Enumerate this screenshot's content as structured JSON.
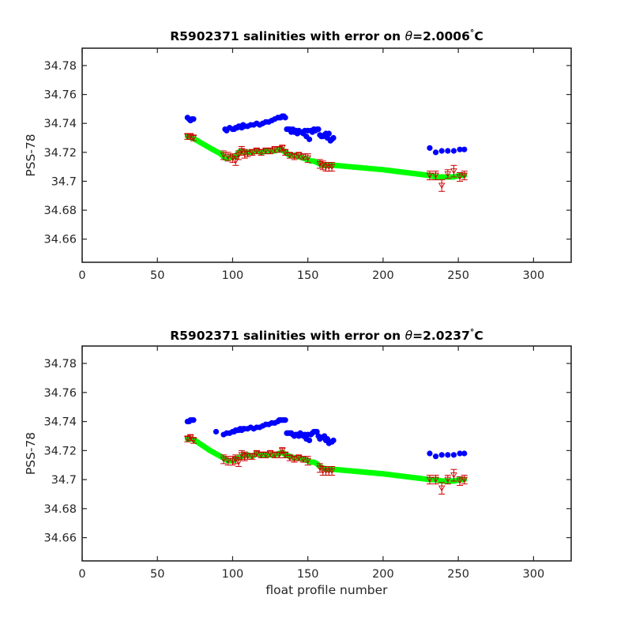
{
  "chart_data": [
    {
      "type": "scatter",
      "title_prefix": "R5902371 salinities with error on ",
      "title_theta": "θ",
      "title_value": "=2.0006",
      "title_degree": "°",
      "title_unit": "C",
      "ylabel": "PSS-78",
      "xlabel": "",
      "xlim": [
        0,
        325
      ],
      "ylim": [
        34.644,
        34.792
      ],
      "xticks": [
        0,
        50,
        100,
        150,
        200,
        250,
        300
      ],
      "xtick_labels": [
        "0",
        "50",
        "100",
        "150",
        "200",
        "250",
        "300"
      ],
      "yticks": [
        34.66,
        34.68,
        34.7,
        34.72,
        34.74,
        34.76,
        34.78
      ],
      "ytick_labels": [
        "34.66",
        "34.68",
        "34.7",
        "34.72",
        "34.74",
        "34.76",
        "34.78"
      ],
      "grid": false,
      "series": [
        {
          "role": "raw",
          "color": "#0000ff",
          "x": [
            70,
            71,
            72,
            73,
            74,
            95,
            96,
            98,
            100,
            101,
            102,
            103,
            104,
            105,
            106,
            107,
            108,
            110,
            112,
            114,
            116,
            118,
            120,
            122,
            124,
            126,
            128,
            130,
            131,
            132,
            133,
            134,
            135,
            136,
            137,
            138,
            139,
            140,
            141,
            142,
            143,
            144,
            145,
            146,
            147,
            148,
            149,
            150,
            151,
            152,
            153,
            154,
            155,
            156,
            157,
            158,
            159,
            160,
            161,
            162,
            163,
            164,
            165,
            166,
            167,
            231,
            235,
            239,
            243,
            247,
            251,
            254
          ],
          "y": [
            34.744,
            34.743,
            34.742,
            34.743,
            34.743,
            34.736,
            34.735,
            34.737,
            34.736,
            34.736,
            34.737,
            34.737,
            34.738,
            34.738,
            34.737,
            34.739,
            34.738,
            34.738,
            34.739,
            34.739,
            34.74,
            34.739,
            34.74,
            34.741,
            34.741,
            34.742,
            34.743,
            34.744,
            34.744,
            34.744,
            34.745,
            34.745,
            34.744,
            34.736,
            34.736,
            34.736,
            34.734,
            34.736,
            34.734,
            34.735,
            34.733,
            34.735,
            34.734,
            34.734,
            34.733,
            34.735,
            34.731,
            34.735,
            34.729,
            34.735,
            34.734,
            34.736,
            34.735,
            34.736,
            34.736,
            34.732,
            34.731,
            34.731,
            34.732,
            34.733,
            34.73,
            34.733,
            34.728,
            34.729,
            34.73,
            34.723,
            34.72,
            34.721,
            34.721,
            34.721,
            34.722,
            34.722
          ]
        },
        {
          "role": "calibrated",
          "color": "#00ff00",
          "x": [
            70,
            73,
            75,
            85,
            92,
            95,
            97,
            100,
            102,
            104,
            106,
            108,
            110,
            113,
            116,
            119,
            122,
            125,
            128,
            131,
            133,
            135,
            138,
            141,
            144,
            147,
            150,
            152,
            154,
            156,
            158,
            160,
            163,
            166,
            168,
            200,
            231,
            235,
            239,
            243,
            247,
            251,
            254
          ],
          "y": [
            34.731,
            34.73,
            34.729,
            34.723,
            34.719,
            34.716,
            34.716,
            34.717,
            34.717,
            34.72,
            34.721,
            34.72,
            34.72,
            34.72,
            34.721,
            34.72,
            34.721,
            34.721,
            34.721,
            34.722,
            34.722,
            34.72,
            34.718,
            34.718,
            34.717,
            34.716,
            34.715,
            34.714,
            34.714,
            34.713,
            34.712,
            34.711,
            34.711,
            34.711,
            34.711,
            34.708,
            34.704,
            34.703,
            34.703,
            34.703,
            34.703,
            34.704,
            34.704
          ]
        },
        {
          "role": "error-bars",
          "color": "#cc0000",
          "x": [
            70,
            72,
            74,
            94,
            97,
            100,
            102,
            104,
            106,
            108,
            110,
            113,
            116,
            119,
            122,
            125,
            128,
            131,
            133,
            135,
            138,
            141,
            144,
            147,
            150,
            158,
            160,
            162,
            164,
            166,
            231,
            235,
            239,
            243,
            247,
            251,
            254
          ],
          "y": [
            34.731,
            34.731,
            34.73,
            34.718,
            34.717,
            34.716,
            34.714,
            34.718,
            34.721,
            34.719,
            34.719,
            34.72,
            34.721,
            34.72,
            34.721,
            34.721,
            34.722,
            34.722,
            34.723,
            34.72,
            34.718,
            34.717,
            34.718,
            34.717,
            34.716,
            34.712,
            34.711,
            34.71,
            34.71,
            34.71,
            34.704,
            34.704,
            34.697,
            34.705,
            34.707,
            34.703,
            34.704
          ],
          "err": [
            0.002,
            0.002,
            0.002,
            0.003,
            0.003,
            0.003,
            0.003,
            0.003,
            0.003,
            0.003,
            0.002,
            0.002,
            0.002,
            0.002,
            0.002,
            0.002,
            0.002,
            0.002,
            0.002,
            0.002,
            0.002,
            0.002,
            0.002,
            0.002,
            0.003,
            0.003,
            0.003,
            0.003,
            0.003,
            0.003,
            0.003,
            0.003,
            0.004,
            0.003,
            0.004,
            0.003,
            0.003
          ]
        }
      ]
    },
    {
      "type": "scatter",
      "title_prefix": "R5902371 salinities with error on ",
      "title_theta": "θ",
      "title_value": "=2.0237",
      "title_degree": "°",
      "title_unit": "C",
      "ylabel": "PSS-78",
      "xlabel": "float profile number",
      "xlim": [
        0,
        325
      ],
      "ylim": [
        34.644,
        34.792
      ],
      "xticks": [
        0,
        50,
        100,
        150,
        200,
        250,
        300
      ],
      "xtick_labels": [
        "0",
        "50",
        "100",
        "150",
        "200",
        "250",
        "300"
      ],
      "yticks": [
        34.66,
        34.68,
        34.7,
        34.72,
        34.74,
        34.76,
        34.78
      ],
      "ytick_labels": [
        "34.66",
        "34.68",
        "34.7",
        "34.72",
        "34.74",
        "34.76",
        "34.78"
      ],
      "grid": false,
      "series": [
        {
          "role": "raw",
          "color": "#0000ff",
          "x": [
            70,
            71,
            72,
            73,
            74,
            89,
            94,
            96,
            98,
            100,
            101,
            102,
            103,
            104,
            105,
            106,
            107,
            108,
            110,
            112,
            114,
            116,
            118,
            120,
            122,
            124,
            126,
            128,
            130,
            131,
            132,
            133,
            134,
            135,
            136,
            137,
            138,
            139,
            140,
            141,
            142,
            143,
            144,
            145,
            146,
            147,
            148,
            149,
            150,
            151,
            152,
            153,
            154,
            155,
            156,
            157,
            158,
            159,
            160,
            161,
            162,
            163,
            164,
            165,
            166,
            167,
            231,
            235,
            239,
            243,
            247,
            251,
            254
          ],
          "y": [
            34.74,
            34.74,
            34.741,
            34.741,
            34.741,
            34.733,
            34.731,
            34.732,
            34.732,
            34.733,
            34.733,
            34.734,
            34.734,
            34.734,
            34.735,
            34.734,
            34.735,
            34.735,
            34.735,
            34.736,
            34.735,
            34.736,
            34.736,
            34.737,
            34.738,
            34.738,
            34.739,
            34.739,
            34.74,
            34.741,
            34.741,
            34.741,
            34.741,
            34.741,
            34.732,
            34.732,
            34.732,
            34.732,
            34.731,
            34.73,
            34.731,
            34.731,
            34.73,
            34.732,
            34.731,
            34.73,
            34.731,
            34.728,
            34.731,
            34.727,
            34.731,
            34.732,
            34.733,
            34.733,
            34.733,
            34.73,
            34.728,
            34.729,
            34.729,
            34.73,
            34.727,
            34.728,
            34.725,
            34.726,
            34.726,
            34.727,
            34.718,
            34.716,
            34.717,
            34.717,
            34.717,
            34.718,
            34.718
          ]
        },
        {
          "role": "calibrated",
          "color": "#00ff00",
          "x": [
            70,
            73,
            75,
            85,
            92,
            95,
            97,
            100,
            102,
            104,
            106,
            108,
            110,
            113,
            116,
            119,
            122,
            125,
            128,
            131,
            133,
            135,
            138,
            141,
            144,
            147,
            150,
            152,
            154,
            156,
            158,
            160,
            163,
            166,
            168,
            200,
            231,
            235,
            239,
            243,
            247,
            251,
            254
          ],
          "y": [
            34.728,
            34.728,
            34.727,
            34.72,
            34.716,
            34.714,
            34.713,
            34.713,
            34.714,
            34.715,
            34.716,
            34.717,
            34.717,
            34.716,
            34.718,
            34.717,
            34.717,
            34.717,
            34.717,
            34.718,
            34.719,
            34.717,
            34.716,
            34.715,
            34.715,
            34.714,
            34.713,
            34.712,
            34.712,
            34.711,
            34.709,
            34.708,
            34.707,
            34.707,
            34.707,
            34.704,
            34.7,
            34.7,
            34.699,
            34.699,
            34.699,
            34.7,
            34.7
          ]
        },
        {
          "role": "error-bars",
          "color": "#cc0000",
          "x": [
            70,
            72,
            74,
            94,
            97,
            100,
            102,
            104,
            106,
            108,
            110,
            113,
            116,
            119,
            122,
            125,
            128,
            131,
            133,
            135,
            138,
            141,
            144,
            147,
            150,
            158,
            160,
            162,
            164,
            166,
            231,
            235,
            239,
            243,
            247,
            251,
            254
          ],
          "y": [
            34.728,
            34.729,
            34.727,
            34.714,
            34.713,
            34.713,
            34.714,
            34.712,
            34.717,
            34.716,
            34.716,
            34.716,
            34.718,
            34.717,
            34.717,
            34.718,
            34.717,
            34.717,
            34.72,
            34.717,
            34.715,
            34.714,
            34.715,
            34.714,
            34.713,
            34.708,
            34.706,
            34.706,
            34.706,
            34.706,
            34.7,
            34.7,
            34.694,
            34.7,
            34.703,
            34.699,
            34.7
          ],
          "err": [
            0.002,
            0.002,
            0.002,
            0.003,
            0.003,
            0.003,
            0.003,
            0.003,
            0.003,
            0.003,
            0.002,
            0.002,
            0.002,
            0.002,
            0.002,
            0.002,
            0.002,
            0.002,
            0.002,
            0.002,
            0.002,
            0.002,
            0.002,
            0.002,
            0.003,
            0.003,
            0.003,
            0.003,
            0.003,
            0.003,
            0.003,
            0.003,
            0.004,
            0.003,
            0.004,
            0.003,
            0.003
          ]
        }
      ]
    }
  ]
}
